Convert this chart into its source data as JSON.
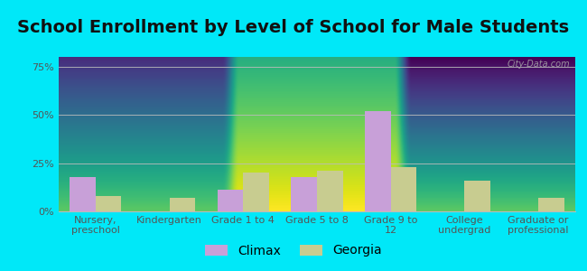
{
  "title": "School Enrollment by Level of School for Male Students",
  "categories": [
    "Nursery,\npreschool",
    "Kindergarten",
    "Grade 1 to 4",
    "Grade 5 to 8",
    "Grade 9 to\n12",
    "College\nundergrad",
    "Graduate or\nprofessional"
  ],
  "climax": [
    18,
    0,
    11,
    18,
    52,
    0,
    0
  ],
  "georgia": [
    8,
    7,
    20,
    21,
    23,
    16,
    7
  ],
  "climax_color": "#c8a0d8",
  "georgia_color": "#c8cc90",
  "background_outer": "#00e8f8",
  "yticks": [
    0,
    25,
    50,
    75
  ],
  "ylim": [
    0,
    80
  ],
  "bar_width": 0.35,
  "title_fontsize": 14,
  "tick_fontsize": 8,
  "legend_fontsize": 10,
  "watermark": "City-Data.com",
  "axis_label_color": "#555555",
  "grid_color": "#bbbbbb",
  "title_color": "#111111"
}
